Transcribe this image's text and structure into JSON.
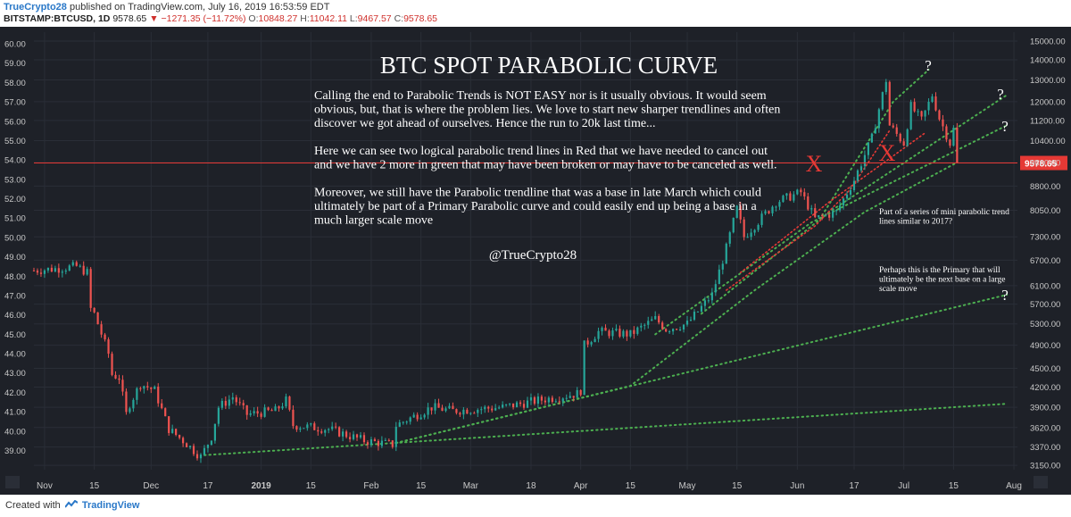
{
  "header": {
    "author": "TrueCrypto28",
    "published_text": "published on TradingView.com, July 16, 2019 16:53:59 EDT",
    "symbol": "BITSTAMP:BTCUSD, 1D",
    "last": "9578.65",
    "change": "−1271.35 (−11.72%)",
    "open_label": "O:",
    "open": "10848.27",
    "high_label": "H:",
    "high": "11042.11",
    "low_label": "L:",
    "low": "9467.57",
    "close_label": "C:",
    "close": "9578.65",
    "down_arrow": "▼"
  },
  "footer": {
    "created_with": "Created with",
    "brand": "TradingView"
  },
  "colors": {
    "background": "#1e2128",
    "bull": "#26a69a",
    "bear": "#ef5350",
    "green_trend": "#4caf50",
    "red_trend": "#e53935",
    "price_line": "#e53935"
  },
  "chart_data": {
    "type": "candlestick",
    "title": "BTC SPOT PARABOLIC CURVE",
    "description_paragraphs": [
      "Calling the end to Parabolic Trends is NOT EASY nor is it usually obvious. It would seem obvious, but, that is where the problem lies. We love to start new sharper trendlines and often discover we got ahead of ourselves. Hence the run to 20k last time...",
      "Here we can see two logical parabolic trend lines in Red that we have needed to cancel out and we have 2 more in green that may have been broken or may have to be canceled as well.",
      "Moreover, we still have the Parabolic trendline that was a base in late March which could ultimately be part of a Primary Parabolic curve and could easily end up being a base in a much larger scale move"
    ],
    "handle": "@TrueCrypto28",
    "annotations": [
      "Part of a series of mini parabolic trend lines similar to 2017?",
      "Perhaps this is the Primary that will ultimately be the next base on a large scale move"
    ],
    "marks": [
      "X",
      "X",
      "?",
      "?",
      "?",
      "?"
    ],
    "left_axis_ticks": [
      "60.00",
      "59.00",
      "58.00",
      "57.00",
      "56.00",
      "55.00",
      "54.00",
      "53.00",
      "52.00",
      "51.00",
      "50.00",
      "49.00",
      "48.00",
      "47.00",
      "46.00",
      "45.00",
      "44.00",
      "43.00",
      "42.00",
      "41.00",
      "40.00",
      "39.00"
    ],
    "right_axis_ticks": [
      "15000.00",
      "14000.00",
      "13000.00",
      "12000.00",
      "11200.00",
      "10400.00",
      "9600.00",
      "8800.00",
      "8050.00",
      "7300.00",
      "6700.00",
      "6100.00",
      "5700.00",
      "5300.00",
      "4900.00",
      "4500.00",
      "4200.00",
      "3900.00",
      "3620.00",
      "3370.00",
      "3150.00"
    ],
    "x_ticks": [
      "Nov",
      "15",
      "Dec",
      "17",
      "2019",
      "15",
      "Feb",
      "15",
      "Mar",
      "18",
      "Apr",
      "15",
      "May",
      "15",
      "Jun",
      "17",
      "Jul",
      "15",
      "Aug"
    ],
    "last_price_label": "9578.65",
    "y_scale": "log",
    "grid": true,
    "x_range": [
      "2018-10-29",
      "2019-08-02"
    ],
    "y_range": [
      3100,
      15500
    ],
    "price_path": [
      [
        "2018-10-29",
        6450
      ],
      [
        "2018-11-05",
        6500
      ],
      [
        "2018-11-10",
        6550
      ],
      [
        "2018-11-13",
        6400
      ],
      [
        "2018-11-14",
        5600
      ],
      [
        "2018-11-15",
        5500
      ],
      [
        "2018-11-19",
        4750
      ],
      [
        "2018-11-20",
        4400
      ],
      [
        "2018-11-22",
        4350
      ],
      [
        "2018-11-24",
        3800
      ],
      [
        "2018-11-25",
        3950
      ],
      [
        "2018-11-28",
        4250
      ],
      [
        "2018-12-02",
        4150
      ],
      [
        "2018-12-06",
        3600
      ],
      [
        "2018-12-10",
        3450
      ],
      [
        "2018-12-15",
        3250
      ],
      [
        "2018-12-18",
        3500
      ],
      [
        "2018-12-20",
        3900
      ],
      [
        "2018-12-24",
        4050
      ],
      [
        "2018-12-28",
        3800
      ],
      [
        "2019-01-05",
        3850
      ],
      [
        "2019-01-08",
        4000
      ],
      [
        "2019-01-10",
        3650
      ],
      [
        "2019-01-20",
        3600
      ],
      [
        "2019-01-30",
        3450
      ],
      [
        "2019-02-07",
        3400
      ],
      [
        "2019-02-08",
        3650
      ],
      [
        "2019-02-18",
        3900
      ],
      [
        "2019-02-24",
        3850
      ],
      [
        "2019-03-10",
        3900
      ],
      [
        "2019-03-20",
        4000
      ],
      [
        "2019-03-31",
        4100
      ],
      [
        "2019-04-01",
        4150
      ],
      [
        "2019-04-02",
        4900
      ],
      [
        "2019-04-06",
        5150
      ],
      [
        "2019-04-15",
        5100
      ],
      [
        "2019-04-22",
        5400
      ],
      [
        "2019-04-25",
        5200
      ],
      [
        "2019-05-01",
        5300
      ],
      [
        "2019-05-08",
        5900
      ],
      [
        "2019-05-12",
        7000
      ],
      [
        "2019-05-15",
        8100
      ],
      [
        "2019-05-17",
        7300
      ],
      [
        "2019-05-26",
        8300
      ],
      [
        "2019-06-02",
        8600
      ],
      [
        "2019-06-06",
        7800
      ],
      [
        "2019-06-12",
        8000
      ],
      [
        "2019-06-17",
        9000
      ],
      [
        "2019-06-22",
        10500
      ],
      [
        "2019-06-26",
        13000
      ],
      [
        "2019-06-27",
        11000
      ],
      [
        "2019-07-01",
        10300
      ],
      [
        "2019-07-03",
        11800
      ],
      [
        "2019-07-06",
        11200
      ],
      [
        "2019-07-09",
        12300
      ],
      [
        "2019-07-11",
        11300
      ],
      [
        "2019-07-14",
        10300
      ],
      [
        "2019-07-15",
        10848
      ],
      [
        "2019-07-16",
        9578
      ]
    ]
  }
}
